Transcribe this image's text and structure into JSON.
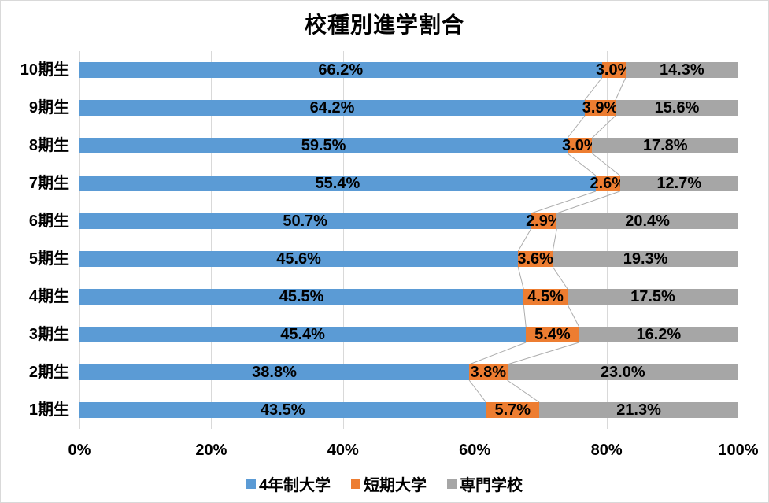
{
  "title": "校種別進学割合",
  "legend": {
    "items": [
      {
        "label": "4年制大学",
        "color": "#5B9BD5"
      },
      {
        "label": "短期大学",
        "color": "#ED7D31"
      },
      {
        "label": "専門学校",
        "color": "#A6A6A6"
      }
    ]
  },
  "x_axis": {
    "tick_labels": [
      "0%",
      "20%",
      "40%",
      "60%",
      "80%",
      "100%"
    ],
    "min": 0,
    "max": 100
  },
  "styles": {
    "gridline_color": "#D9D9D9",
    "series_line_color": "#ACACAC",
    "border_color": "#D9D9D9",
    "label_color": "#000000"
  },
  "chart_data": {
    "type": "bar",
    "orientation": "horizontal",
    "stacking": "100%",
    "title": "校種別進学割合",
    "categories": [
      "10期生",
      "9期生",
      "8期生",
      "7期生",
      "6期生",
      "5期生",
      "4期生",
      "3期生",
      "2期生",
      "1期生"
    ],
    "series": [
      {
        "name": "4年制大学",
        "color": "#5B9BD5",
        "values": [
          66.2,
          64.2,
          59.5,
          55.4,
          50.7,
          45.6,
          45.5,
          45.4,
          38.8,
          43.5
        ]
      },
      {
        "name": "短期大学",
        "color": "#ED7D31",
        "values": [
          3.0,
          3.9,
          3.0,
          2.6,
          2.9,
          3.6,
          4.5,
          5.4,
          3.8,
          5.7
        ]
      },
      {
        "name": "専門学校",
        "color": "#A6A6A6",
        "values": [
          14.3,
          15.6,
          17.8,
          12.7,
          20.4,
          19.3,
          17.5,
          16.2,
          23.0,
          21.3
        ]
      }
    ],
    "data_labels": [
      [
        "66.2%",
        "3.0%",
        "14.3%"
      ],
      [
        "64.2%",
        "3.9%",
        "15.6%"
      ],
      [
        "59.5%",
        "3.0%",
        "17.8%"
      ],
      [
        "55.4%",
        "2.6%",
        "12.7%"
      ],
      [
        "50.7%",
        "2.9%",
        "20.4%"
      ],
      [
        "45.6%",
        "3.6%",
        "19.3%"
      ],
      [
        "45.5%",
        "4.5%",
        "17.5%"
      ],
      [
        "45.4%",
        "5.4%",
        "16.2%"
      ],
      [
        "38.8%",
        "3.8%",
        "23.0%"
      ],
      [
        "43.5%",
        "5.7%",
        "21.3%"
      ]
    ],
    "xlim": [
      0,
      100
    ],
    "grid": true,
    "legend_position": "bottom"
  }
}
